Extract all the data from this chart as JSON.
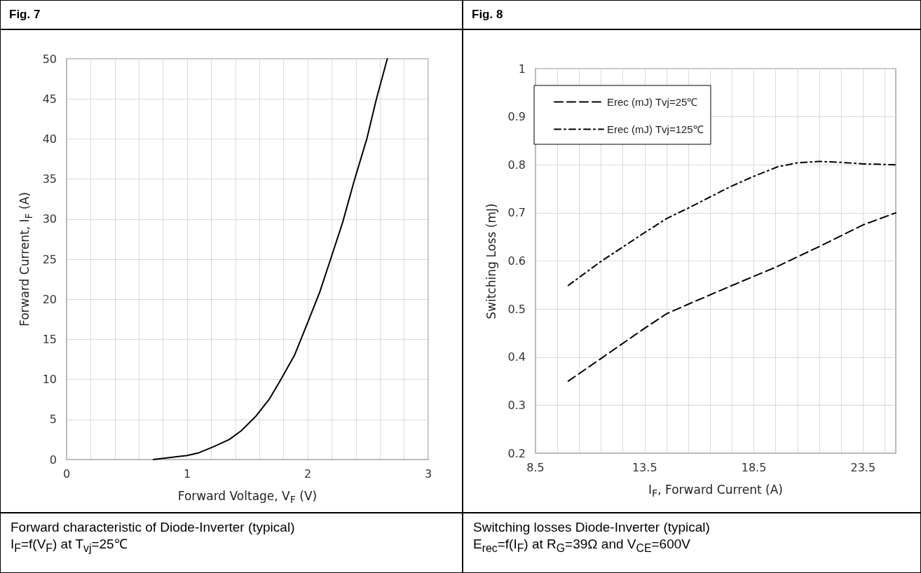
{
  "chart_data": [
    {
      "type": "line",
      "title": "Fig. 7",
      "xlabel": "Forward Voltage, V$_{F}$ (V)",
      "ylabel": "Forward Current, I$_{F}$ (A)",
      "annotations": [
        "Forward characteristic of Diode-Inverter (typical)",
        "I$_{F}$=f(V$_{F}$) at T$_{vj}$=25℃"
      ],
      "series": [
        {
          "color": "#000000",
          "line_style": "solid",
          "x": [
            0.72,
            1.0,
            1.09,
            1.22,
            1.35,
            1.45,
            1.57,
            1.68,
            1.77,
            1.89,
            2.0,
            2.1,
            2.19,
            2.29,
            2.39,
            2.49,
            2.57,
            2.66
          ],
          "values": [
            0,
            0.5,
            0.8,
            1.6,
            2.5,
            3.6,
            5.4,
            7.5,
            9.8,
            13,
            17.1,
            20.9,
            25,
            29.6,
            35,
            40,
            45,
            50
          ]
        }
      ],
      "xlim": [
        0,
        3
      ],
      "xticks": [
        0,
        {
          "value": 0.2,
          "label": null
        },
        {
          "value": 0.4,
          "label": null
        },
        {
          "value": 0.6,
          "label": null
        },
        {
          "value": 0.8,
          "label": null
        },
        1,
        {
          "value": 1.2,
          "label": null
        },
        {
          "value": 1.4,
          "label": null
        },
        {
          "value": 1.6,
          "label": null
        },
        {
          "value": 1.8,
          "label": null
        },
        2,
        {
          "value": 2.2,
          "label": null
        },
        {
          "value": 2.4,
          "label": null
        },
        {
          "value": 2.6,
          "label": null
        },
        {
          "value": 2.8,
          "label": null
        },
        3
      ],
      "ylim": [
        0,
        50
      ],
      "yticks": [
        0,
        5,
        10,
        15,
        20,
        25,
        30,
        35,
        40,
        45,
        50
      ],
      "grid": true
    },
    {
      "type": "line",
      "title": "Fig. 8",
      "xlabel": "I$_{F}$, Forward Current (A)",
      "ylabel": "Switching Loss (mJ)",
      "annotations": [
        "Switching losses Diode-Inverter (typical)",
        "E$_{rec}$=f(I$_{F}$) at R$_{G}$=39Ω and V$_{CE}$=600V"
      ],
      "series": [
        {
          "name": "Erec (mJ) Tvj=25℃",
          "color": "#000000",
          "line_style": "dashed",
          "x": [
            10,
            11.5,
            13.5,
            14.5,
            15.5,
            17.4,
            19.5,
            21.5,
            23.5,
            25
          ],
          "values": [
            0.35,
            0.397,
            0.46,
            0.49,
            0.51,
            0.547,
            0.587,
            0.63,
            0.675,
            0.7
          ]
        },
        {
          "name": "Erec (mJ) Tvj=125℃",
          "color": "#000000",
          "line_style": "dashdot",
          "x": [
            10,
            11.5,
            13.5,
            14.5,
            15.5,
            17.4,
            18.5,
            19.6,
            20.5,
            21.5,
            22.5,
            23.5,
            25
          ],
          "values": [
            0.549,
            0.599,
            0.659,
            0.688,
            0.71,
            0.754,
            0.776,
            0.796,
            0.804,
            0.807,
            0.805,
            0.802,
            0.8
          ]
        }
      ],
      "xlim": [
        8.5,
        25
      ],
      "xticks": [
        8.5,
        {
          "value": 9.5,
          "label": null
        },
        {
          "value": 10.5,
          "label": null
        },
        {
          "value": 11.5,
          "label": null
        },
        {
          "value": 12.5,
          "label": null
        },
        13.5,
        {
          "value": 14.5,
          "label": null
        },
        {
          "value": 15.5,
          "label": null
        },
        {
          "value": 16.5,
          "label": null
        },
        {
          "value": 17.5,
          "label": null
        },
        18.5,
        {
          "value": 19.5,
          "label": null
        },
        {
          "value": 20.5,
          "label": null
        },
        {
          "value": 21.5,
          "label": null
        },
        {
          "value": 22.5,
          "label": null
        },
        23.5,
        {
          "value": 24.5,
          "label": null
        }
      ],
      "ylim": [
        0.2,
        1
      ],
      "yticks": [
        0.2,
        0.3,
        0.4,
        0.5,
        0.6,
        0.7,
        0.8,
        0.9,
        1
      ],
      "grid": true,
      "legend": "top left"
    }
  ]
}
